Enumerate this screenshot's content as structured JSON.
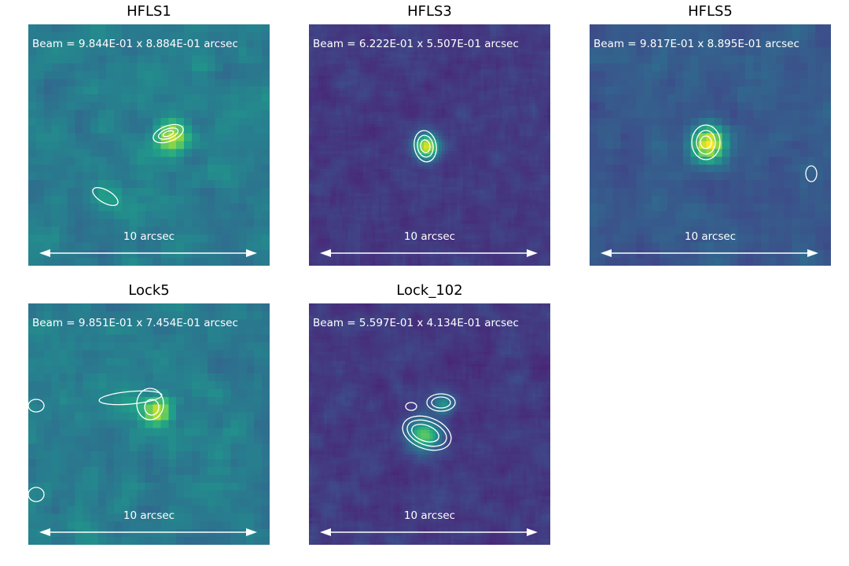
{
  "chart_data": {
    "type": "heatmap",
    "colormap": "viridis",
    "panels": [
      {
        "title": "HFLS1",
        "beam": "Beam =  9.844E-01 x  8.884E-01 arcsec",
        "scale_label": "10 arcsec",
        "scale_length_arcsec": 10
      },
      {
        "title": "HFLS3",
        "beam": "Beam =  6.222E-01 x  5.507E-01 arcsec",
        "scale_label": "10 arcsec",
        "scale_length_arcsec": 10
      },
      {
        "title": "HFLS5",
        "beam": "Beam =  9.817E-01 x  8.895E-01 arcsec",
        "scale_label": "10 arcsec",
        "scale_length_arcsec": 10
      },
      {
        "title": "Lock5",
        "beam": "Beam =  9.851E-01 x  7.454E-01 arcsec",
        "scale_label": "10 arcsec",
        "scale_length_arcsec": 10
      },
      {
        "title": "Lock_102",
        "beam": "Beam =  5.597E-01 x  4.134E-01 arcsec",
        "scale_label": "10 arcsec",
        "scale_length_arcsec": 10
      }
    ]
  }
}
